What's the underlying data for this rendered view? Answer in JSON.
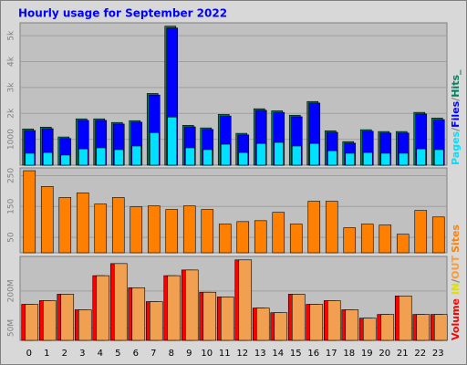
{
  "title": "Hourly usage for September 2022",
  "chart_data": [
    {
      "type": "bar",
      "ylim": [
        0,
        5500
      ],
      "yticks": [
        1000,
        {
          "value": 2000,
          "label": "2k"
        },
        {
          "value": 3000,
          "label": "3k"
        },
        {
          "value": 4000,
          "label": "4k"
        },
        {
          "value": 5000,
          "label": "5k"
        }
      ],
      "grid": true,
      "legend": [
        {
          "text": "Pages",
          "color": "#00e0ff"
        },
        {
          "text": "/",
          "color": "#808080"
        },
        {
          "text": "Files",
          "color": "#0000ff"
        },
        {
          "text": "/",
          "color": "#808080"
        },
        {
          "text": "Hits_",
          "color": "#008060"
        }
      ],
      "series": [
        {
          "color": "#008060",
          "values": [
            1400,
            1470,
            1090,
            1790,
            1790,
            1650,
            1720,
            2770,
            5370,
            1540,
            1440,
            1960,
            1230,
            2180,
            2100,
            1930,
            2460,
            1330,
            910,
            1370,
            1300,
            1300,
            2040,
            1820
          ]
        },
        {
          "color": "#0000ff",
          "values": [
            1340,
            1410,
            1030,
            1730,
            1730,
            1590,
            1660,
            2710,
            5300,
            1480,
            1380,
            1900,
            1170,
            2120,
            2040,
            1870,
            2400,
            1270,
            850,
            1310,
            1240,
            1240,
            1980,
            1760
          ]
        },
        {
          "color": "#00e0ff",
          "values": [
            460,
            490,
            390,
            630,
            670,
            600,
            740,
            1260,
            1860,
            670,
            600,
            810,
            490,
            840,
            880,
            740,
            840,
            560,
            460,
            490,
            460,
            460,
            630,
            600
          ]
        }
      ]
    },
    {
      "type": "bar",
      "ylim": [
        0,
        275
      ],
      "yticks": [
        50,
        150,
        250
      ],
      "grid": true,
      "legend": [
        {
          "text": "Sites",
          "color": "#ff8000"
        }
      ],
      "series": [
        {
          "color": "#ff8000",
          "values": [
            266,
            215,
            179,
            194,
            158,
            179,
            149,
            152,
            140,
            152,
            140,
            93,
            101,
            104,
            131,
            93,
            167,
            167,
            81,
            93,
            90,
            60,
            137,
            116
          ]
        }
      ]
    },
    {
      "type": "bar",
      "ylim": [
        0,
        340
      ],
      "yticks": [
        {
          "value": 50,
          "label": "50M"
        },
        {
          "value": 200,
          "label": "200M"
        }
      ],
      "grid": true,
      "legend": [
        {
          "text": "Volume",
          "color": "#ff0000"
        },
        {
          "text": " ",
          "color": "#808080"
        },
        {
          "text": "IN",
          "color": "#e0e000"
        },
        {
          "text": "/",
          "color": "#808080"
        },
        {
          "text": "OUT",
          "color": "#ff9933"
        }
      ],
      "categories": [
        "0",
        "1",
        "2",
        "3",
        "4",
        "5",
        "6",
        "7",
        "8",
        "9",
        "10",
        "11",
        "12",
        "13",
        "14",
        "15",
        "16",
        "17",
        "18",
        "19",
        "20",
        "21",
        "22",
        "23"
      ],
      "series": [
        {
          "color": "#ff0000",
          "values": [
            146,
            161,
            187,
            124,
            262,
            311,
            213,
            157,
            262,
            285,
            195,
            176,
            326,
            131,
            112,
            187,
            146,
            161,
            124,
            90,
            105,
            180,
            105,
            105
          ]
        },
        {
          "color": "#f0a050",
          "values": [
            146,
            161,
            187,
            124,
            262,
            311,
            213,
            157,
            262,
            285,
            195,
            176,
            326,
            131,
            112,
            187,
            146,
            161,
            124,
            90,
            105,
            180,
            105,
            105
          ]
        }
      ]
    }
  ]
}
